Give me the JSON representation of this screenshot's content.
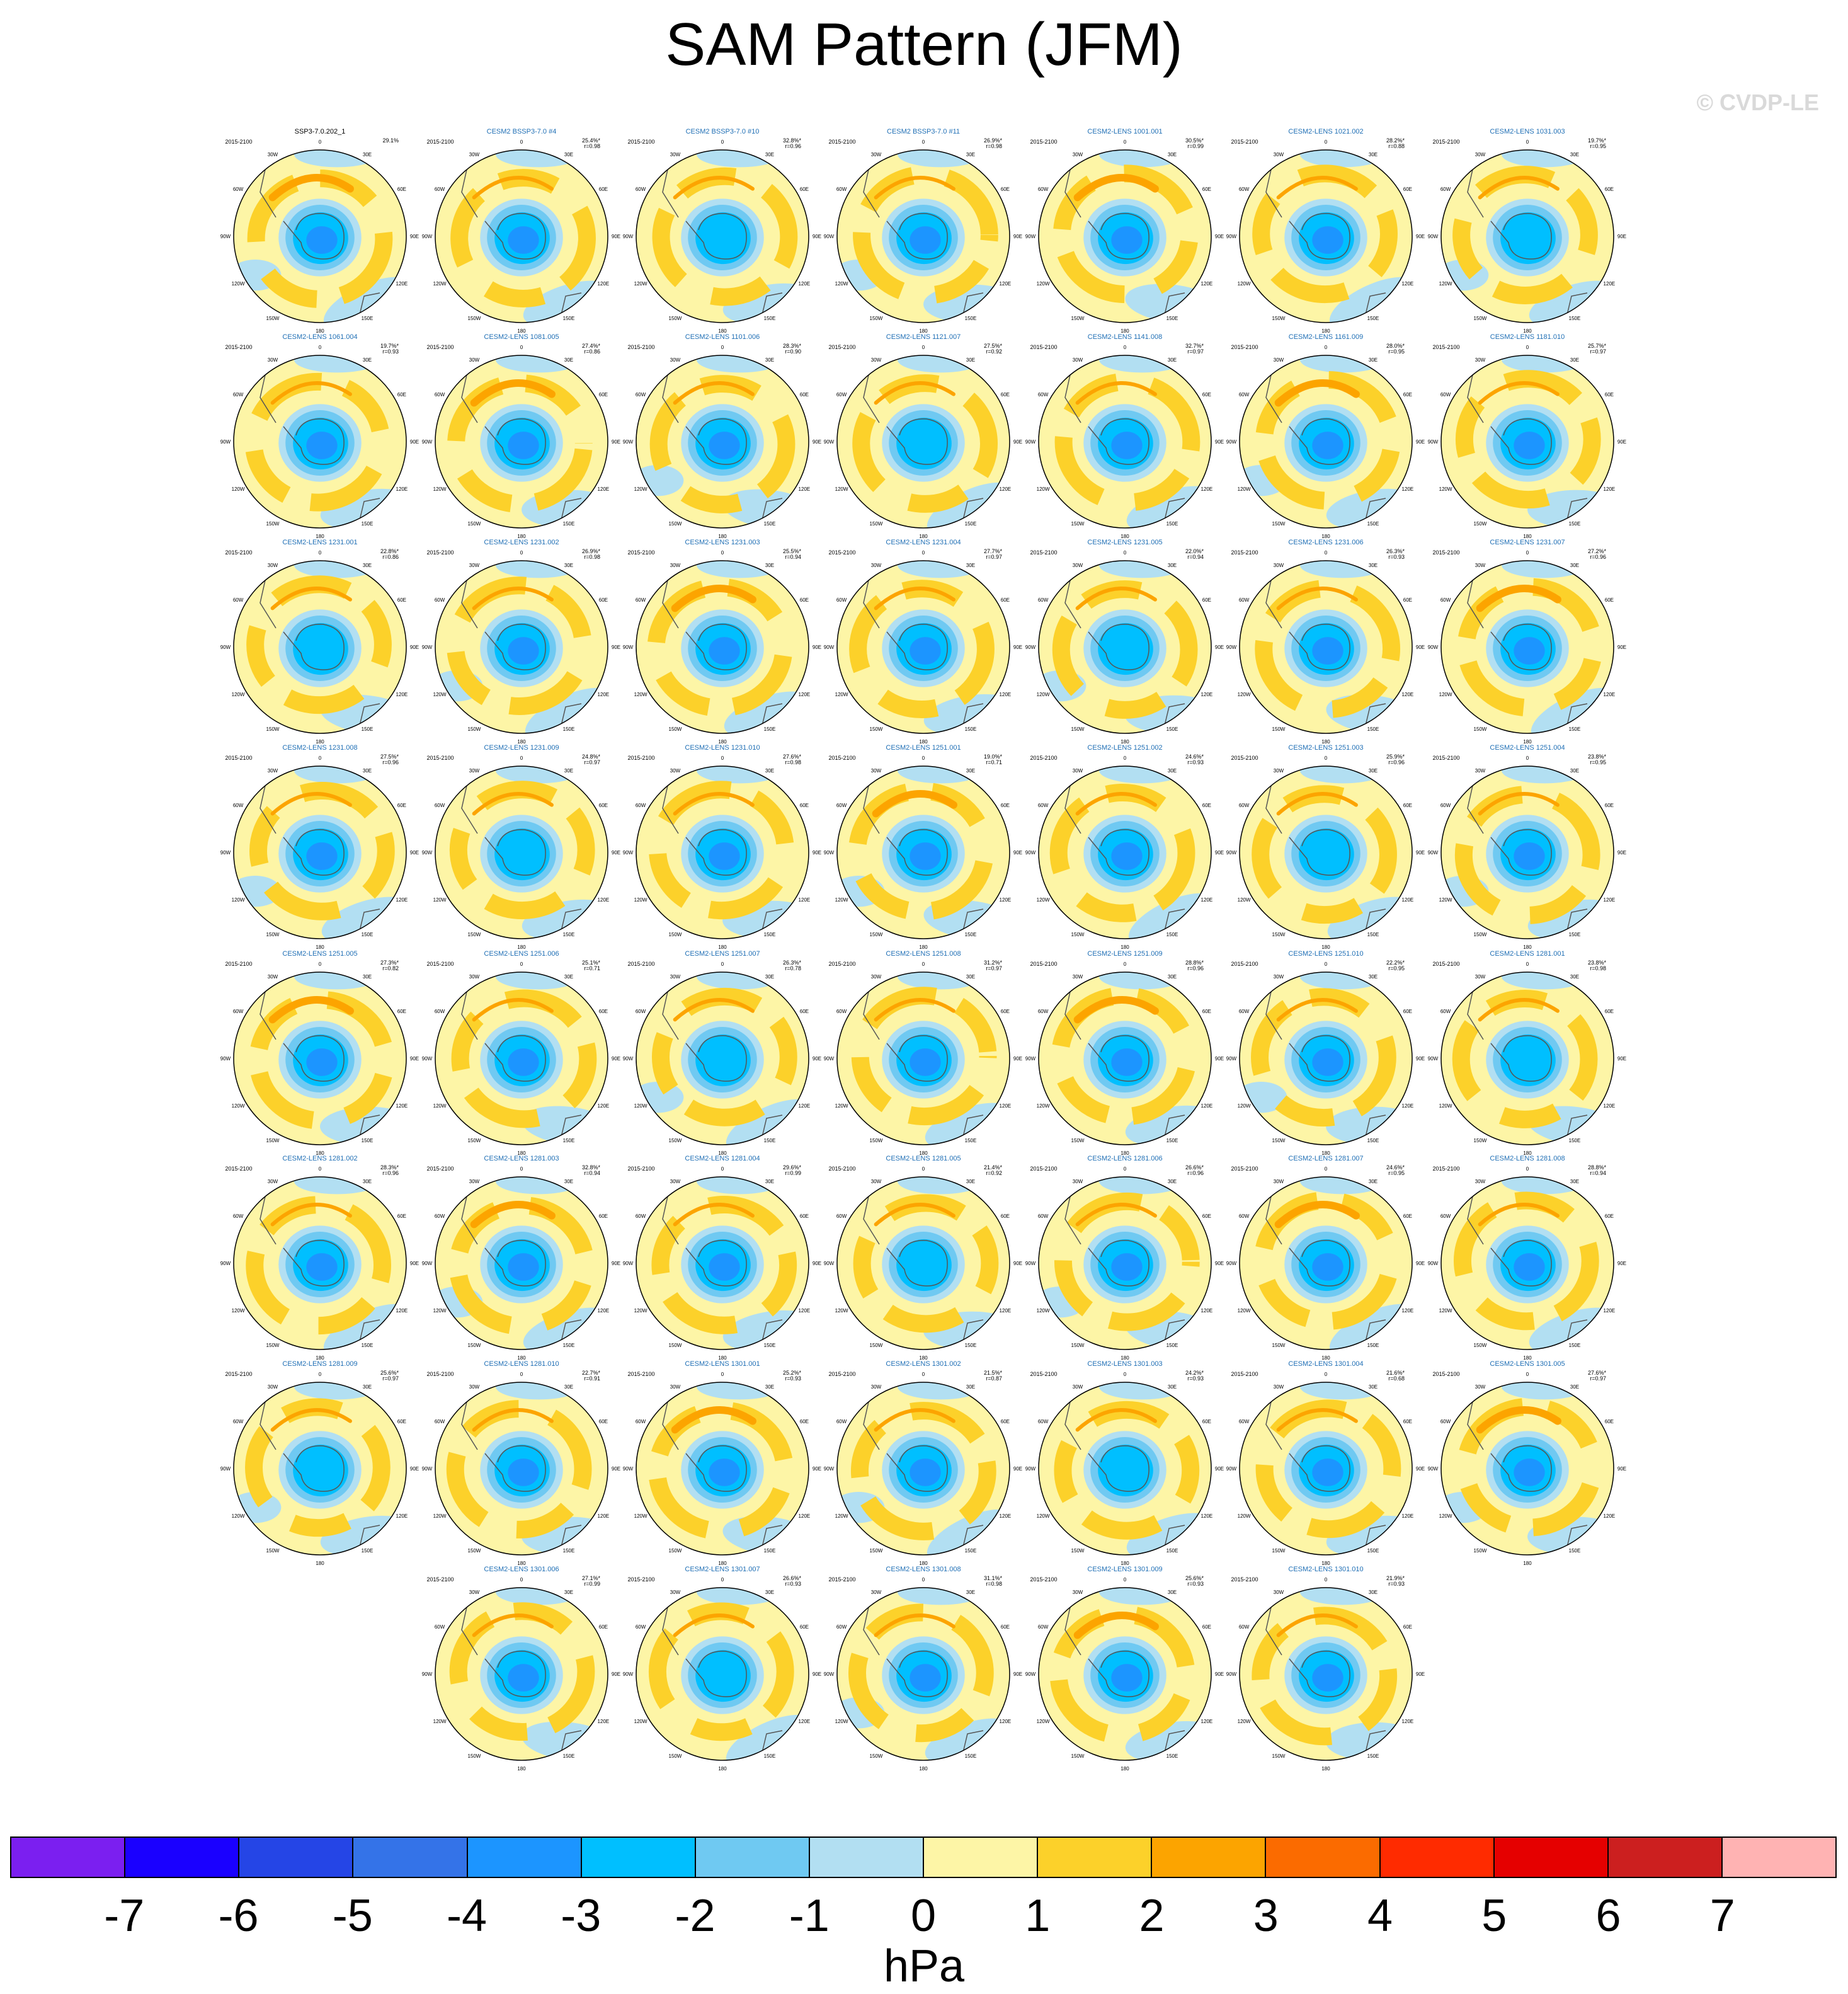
{
  "title": "SAM Pattern (JFM)",
  "watermark": "© CVDP-LE",
  "units": "hPa",
  "palette": [
    "#7b1ff0",
    "#1a00ff",
    "#2545e6",
    "#3473e8",
    "#1c95ff",
    "#00bfff",
    "#6fc9f2",
    "#b2dff2",
    "#fdf5a6",
    "#fcd12a",
    "#fca400",
    "#fb6b00",
    "#ff2b00",
    "#e50000",
    "#cc1f1f",
    "#ffb3b3"
  ],
  "tick_labels": [
    "-7",
    "-6",
    "-5",
    "-4",
    "-3",
    "-2",
    "-1",
    "0",
    "1",
    "2",
    "3",
    "4",
    "5",
    "6",
    "7"
  ],
  "chart_data": {
    "type": "heatmap",
    "title": "SAM Pattern (JFM)",
    "colorbar": {
      "label": "hPa",
      "levels": [
        -7,
        -6,
        -5,
        -4,
        -3,
        -2,
        -1,
        0,
        1,
        2,
        3,
        4,
        5,
        6,
        7
      ],
      "range": [
        -7,
        7
      ]
    },
    "period": "2015-2100",
    "panels": [
      {
        "name": "SSP3-7.0.202_1",
        "pct": "29.1%",
        "r": ""
      },
      {
        "name": "CESM2 BSSP3-7.0 #4",
        "pct": "25.4%*",
        "r": "r=0.98"
      },
      {
        "name": "CESM2 BSSP3-7.0 #10",
        "pct": "32.8%*",
        "r": "r=0.96"
      },
      {
        "name": "CESM2 BSSP3-7.0 #11",
        "pct": "26.9%*",
        "r": "r=0.98"
      },
      {
        "name": "CESM2-LENS 1001.001",
        "pct": "30.5%*",
        "r": "r=0.99"
      },
      {
        "name": "CESM2-LENS 1021.002",
        "pct": "28.2%*",
        "r": "r=0.88"
      },
      {
        "name": "CESM2-LENS 1031.003",
        "pct": "19.7%*",
        "r": "r=0.95"
      },
      {
        "name": "CESM2-LENS 1061.004",
        "pct": "19.7%*",
        "r": "r=0.93"
      },
      {
        "name": "CESM2-LENS 1081.005",
        "pct": "27.4%*",
        "r": "r=0.86"
      },
      {
        "name": "CESM2-LENS 1101.006",
        "pct": "28.3%*",
        "r": "r=0.90"
      },
      {
        "name": "CESM2-LENS 1121.007",
        "pct": "27.5%*",
        "r": "r=0.92"
      },
      {
        "name": "CESM2-LENS 1141.008",
        "pct": "32.7%*",
        "r": "r=0.97"
      },
      {
        "name": "CESM2-LENS 1161.009",
        "pct": "28.0%*",
        "r": "r=0.95"
      },
      {
        "name": "CESM2-LENS 1181.010",
        "pct": "25.7%*",
        "r": "r=0.97"
      },
      {
        "name": "CESM2-LENS 1231.001",
        "pct": "22.8%*",
        "r": "r=0.86"
      },
      {
        "name": "CESM2-LENS 1231.002",
        "pct": "26.9%*",
        "r": "r=0.98"
      },
      {
        "name": "CESM2-LENS 1231.003",
        "pct": "25.5%*",
        "r": "r=0.94"
      },
      {
        "name": "CESM2-LENS 1231.004",
        "pct": "27.7%*",
        "r": "r=0.97"
      },
      {
        "name": "CESM2-LENS 1231.005",
        "pct": "22.0%*",
        "r": "r=0.94"
      },
      {
        "name": "CESM2-LENS 1231.006",
        "pct": "26.3%*",
        "r": "r=0.93"
      },
      {
        "name": "CESM2-LENS 1231.007",
        "pct": "27.2%*",
        "r": "r=0.96"
      },
      {
        "name": "CESM2-LENS 1231.008",
        "pct": "27.5%*",
        "r": "r=0.96"
      },
      {
        "name": "CESM2-LENS 1231.009",
        "pct": "24.8%*",
        "r": "r=0.97"
      },
      {
        "name": "CESM2-LENS 1231.010",
        "pct": "27.6%*",
        "r": "r=0.98"
      },
      {
        "name": "CESM2-LENS 1251.001",
        "pct": "19.0%*",
        "r": "r=0.71"
      },
      {
        "name": "CESM2-LENS 1251.002",
        "pct": "24.6%*",
        "r": "r=0.93"
      },
      {
        "name": "CESM2-LENS 1251.003",
        "pct": "25.9%*",
        "r": "r=0.96"
      },
      {
        "name": "CESM2-LENS 1251.004",
        "pct": "23.8%*",
        "r": "r=0.95"
      },
      {
        "name": "CESM2-LENS 1251.005",
        "pct": "27.3%*",
        "r": "r=0.82"
      },
      {
        "name": "CESM2-LENS 1251.006",
        "pct": "25.1%*",
        "r": "r=0.71"
      },
      {
        "name": "CESM2-LENS 1251.007",
        "pct": "26.3%*",
        "r": "r=0.78"
      },
      {
        "name": "CESM2-LENS 1251.008",
        "pct": "31.2%*",
        "r": "r=0.97"
      },
      {
        "name": "CESM2-LENS 1251.009",
        "pct": "28.8%*",
        "r": "r=0.96"
      },
      {
        "name": "CESM2-LENS 1251.010",
        "pct": "22.2%*",
        "r": "r=0.95"
      },
      {
        "name": "CESM2-LENS 1281.001",
        "pct": "23.8%*",
        "r": "r=0.98"
      },
      {
        "name": "CESM2-LENS 1281.002",
        "pct": "28.3%*",
        "r": "r=0.96"
      },
      {
        "name": "CESM2-LENS 1281.003",
        "pct": "32.8%*",
        "r": "r=0.94"
      },
      {
        "name": "CESM2-LENS 1281.004",
        "pct": "29.6%*",
        "r": "r=0.99"
      },
      {
        "name": "CESM2-LENS 1281.005",
        "pct": "21.4%*",
        "r": "r=0.92"
      },
      {
        "name": "CESM2-LENS 1281.006",
        "pct": "26.6%*",
        "r": "r=0.96"
      },
      {
        "name": "CESM2-LENS 1281.007",
        "pct": "24.6%*",
        "r": "r=0.95"
      },
      {
        "name": "CESM2-LENS 1281.008",
        "pct": "28.8%*",
        "r": "r=0.94"
      },
      {
        "name": "CESM2-LENS 1281.009",
        "pct": "25.6%*",
        "r": "r=0.97"
      },
      {
        "name": "CESM2-LENS 1281.010",
        "pct": "22.7%*",
        "r": "r=0.91"
      },
      {
        "name": "CESM2-LENS 1301.001",
        "pct": "25.2%*",
        "r": "r=0.93"
      },
      {
        "name": "CESM2-LENS 1301.002",
        "pct": "21.5%*",
        "r": "r=0.87"
      },
      {
        "name": "CESM2-LENS 1301.003",
        "pct": "24.2%*",
        "r": "r=0.93"
      },
      {
        "name": "CESM2-LENS 1301.004",
        "pct": "21.6%*",
        "r": "r=0.68"
      },
      {
        "name": "CESM2-LENS 1301.005",
        "pct": "27.6%*",
        "r": "r=0.97"
      },
      {
        "name": "CESM2-LENS 1301.006",
        "pct": "27.1%*",
        "r": "r=0.99"
      },
      {
        "name": "CESM2-LENS 1301.007",
        "pct": "26.6%*",
        "r": "r=0.93"
      },
      {
        "name": "CESM2-LENS 1301.008",
        "pct": "31.1%*",
        "r": "r=0.98"
      },
      {
        "name": "CESM2-LENS 1301.009",
        "pct": "25.6%*",
        "r": "r=0.93"
      },
      {
        "name": "CESM2-LENS 1301.010",
        "pct": "21.9%*",
        "r": "r=0.93"
      }
    ],
    "lon_labels": [
      "0",
      "30E",
      "60E",
      "90E",
      "120E",
      "150E",
      "180",
      "150W",
      "120W",
      "90W",
      "60W",
      "30W"
    ]
  }
}
